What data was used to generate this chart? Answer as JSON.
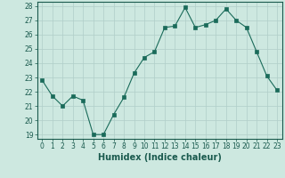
{
  "x": [
    0,
    1,
    2,
    3,
    4,
    5,
    6,
    7,
    8,
    9,
    10,
    11,
    12,
    13,
    14,
    15,
    16,
    17,
    18,
    19,
    20,
    21,
    22,
    23
  ],
  "y": [
    22.8,
    21.7,
    21.0,
    21.7,
    21.4,
    19.0,
    19.0,
    20.4,
    21.6,
    23.3,
    24.4,
    24.8,
    26.5,
    26.6,
    27.9,
    26.5,
    26.7,
    27.0,
    27.8,
    27.0,
    26.5,
    24.8,
    23.1,
    22.1
  ],
  "line_color": "#1a6b5a",
  "marker": "s",
  "marker_size": 2.5,
  "bg_color": "#cde8e0",
  "grid_color": "#b0cec8",
  "xlabel": "Humidex (Indice chaleur)",
  "ylim": [
    19,
    28
  ],
  "yticks": [
    19,
    20,
    21,
    22,
    23,
    24,
    25,
    26,
    27,
    28
  ],
  "xticks": [
    0,
    1,
    2,
    3,
    4,
    5,
    6,
    7,
    8,
    9,
    10,
    11,
    12,
    13,
    14,
    15,
    16,
    17,
    18,
    19,
    20,
    21,
    22,
    23
  ],
  "tick_label_size": 5.5,
  "xlabel_size": 7,
  "axis_color": "#1a5a4e"
}
